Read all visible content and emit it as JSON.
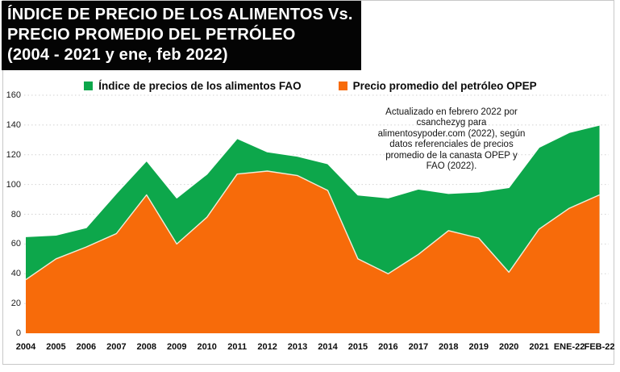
{
  "title": {
    "lines": [
      "ÍNDICE DE PRECIO DE LOS ALIMENTOS Vs.",
      "PRECIO PROMEDIO DEL PETRÓLEO",
      "(2004 - 2021 y ene, feb 2022)"
    ]
  },
  "annotation": {
    "lines": [
      "Actualizado en febrero 2022 por",
      "csanchezyg para",
      "alimentosypoder.com (2022), según",
      "datos referenciales de precios",
      "promedio de la canasta OPEP y",
      "FAO (2022)."
    ]
  },
  "colors": {
    "fao_green": "#0da74b",
    "opep_orange": "#f76b0a",
    "gridline": "#d2d2d2",
    "frame": "#c8c8c8",
    "title_bg": "#040404",
    "title_text": "#ffffff"
  },
  "chart_data": {
    "type": "area",
    "title": "ÍNDICE DE PRECIO DE LOS ALIMENTOS Vs. PRECIO PROMEDIO DEL PETRÓLEO (2004 - 2021 y ene, feb 2022)",
    "categories": [
      "2004",
      "2005",
      "2006",
      "2007",
      "2008",
      "2009",
      "2010",
      "2011",
      "2012",
      "2013",
      "2014",
      "2015",
      "2016",
      "2017",
      "2018",
      "2019",
      "2020",
      "2021",
      "ENE-22",
      "FEB-22"
    ],
    "series": [
      {
        "name": "Índice de precios de los alimentos FAO",
        "color": "#0da74b",
        "values": [
          65,
          66,
          71,
          94,
          116,
          91,
          107,
          131,
          122,
          119,
          114,
          93,
          91,
          97,
          94,
          95,
          98,
          125,
          135,
          140
        ]
      },
      {
        "name": "Precio promedio del petróleo OPEP",
        "color": "#f76b0a",
        "values": [
          36,
          50,
          58,
          67,
          93,
          60,
          78,
          107,
          109,
          106,
          96,
          50,
          40,
          53,
          69,
          64,
          41,
          70,
          84,
          93
        ]
      }
    ],
    "ylim": [
      0,
      160
    ],
    "ytick_step": 20,
    "yticks": [
      0,
      20,
      40,
      60,
      80,
      100,
      120,
      140,
      160
    ],
    "grid": "horizontal-dotted",
    "legend_position": "top"
  }
}
